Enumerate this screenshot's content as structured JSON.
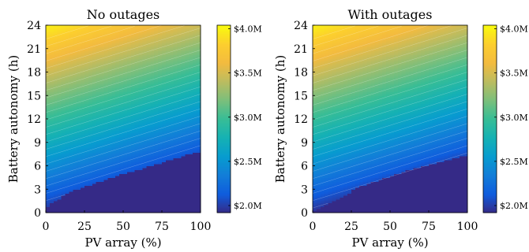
{
  "chart_data": [
    {
      "type": "heatmap",
      "title": "No outages",
      "xlabel": "PV array (%)",
      "ylabel": "Battery autonomy (h)",
      "xlim": [
        0,
        100
      ],
      "ylim": [
        0,
        24
      ],
      "xticks": [
        0,
        25,
        50,
        75,
        100
      ],
      "yticks": [
        0,
        3,
        6,
        9,
        12,
        15,
        18,
        21,
        24
      ],
      "grid": false,
      "colorbar": {
        "label_ticks": [
          "$2.0M",
          "$2.5M",
          "$3.0M",
          "$3.5M",
          "$4.0M"
        ],
        "tick_values": [
          2.0,
          2.5,
          3.0,
          3.5,
          4.0
        ],
        "range": [
          1.92,
          4.04
        ]
      },
      "floor_value": 1.92,
      "floor_boundary": {
        "x": [
          0,
          10,
          20,
          30,
          40,
          50,
          60,
          70,
          80,
          90,
          100
        ],
        "y": [
          0.6,
          2.0,
          3.0,
          3.7,
          4.3,
          5.0,
          5.5,
          6.1,
          6.7,
          7.3,
          7.9
        ]
      },
      "cost_model": {
        "base": 1.95,
        "per_hour": 0.085,
        "x_effect_per_percent": -0.0052
      }
    },
    {
      "type": "heatmap",
      "title": "With outages",
      "xlabel": "PV array (%)",
      "ylabel": "Battery autonomy (h)",
      "xlim": [
        0,
        100
      ],
      "ylim": [
        0,
        24
      ],
      "xticks": [
        0,
        25,
        50,
        75,
        100
      ],
      "yticks": [
        0,
        3,
        6,
        9,
        12,
        15,
        18,
        21,
        24
      ],
      "grid": false,
      "colorbar": {
        "label_ticks": [
          "$2.0M",
          "$2.5M",
          "$3.0M",
          "$3.5M",
          "$4.0M"
        ],
        "tick_values": [
          2.0,
          2.5,
          3.0,
          3.5,
          4.0
        ],
        "range": [
          1.92,
          4.04
        ]
      },
      "floor_value": 1.92,
      "floor_boundary": {
        "x": [
          0,
          10,
          20,
          30,
          40,
          50,
          60,
          70,
          80,
          90,
          100
        ],
        "y": [
          0.0,
          1.1,
          2.2,
          3.3,
          4.0,
          4.7,
          5.3,
          5.9,
          6.4,
          6.9,
          7.4
        ]
      },
      "cost_model": {
        "base": 1.95,
        "per_hour": 0.085,
        "x_effect_per_percent": -0.0052
      }
    }
  ]
}
